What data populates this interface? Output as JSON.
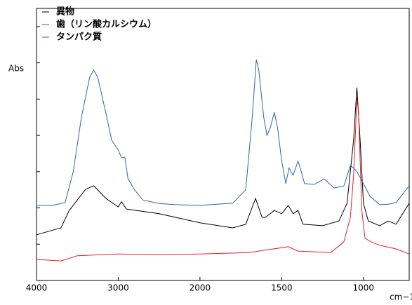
{
  "chart_data": {
    "type": "line",
    "ylabel": "Abs",
    "xlabel": "cm−1",
    "xlim": [
      4000,
      720
    ],
    "xbreak": 2000,
    "xticks": [
      4000,
      3000,
      2000,
      1500,
      1000
    ],
    "ylim": [
      0,
      0.75
    ],
    "yticks": [
      0.1,
      0.2,
      0.3,
      0.4,
      0.5,
      0.6,
      0.7
    ],
    "series": [
      {
        "name": "異物",
        "color": "#000000",
        "x": [
          4000,
          3700,
          3600,
          3500,
          3400,
          3300,
          3150,
          3000,
          2960,
          2900,
          2500,
          2000,
          1800,
          1720,
          1660,
          1620,
          1600,
          1545,
          1500,
          1460,
          1430,
          1400,
          1370,
          1250,
          1150,
          1100,
          1060,
          1040,
          1020,
          1000,
          970,
          900,
          850,
          800,
          720
        ],
        "values": [
          0.126,
          0.145,
          0.193,
          0.222,
          0.251,
          0.261,
          0.226,
          0.203,
          0.217,
          0.197,
          0.184,
          0.159,
          0.145,
          0.155,
          0.226,
          0.174,
          0.174,
          0.193,
          0.184,
          0.207,
          0.184,
          0.193,
          0.155,
          0.151,
          0.164,
          0.213,
          0.387,
          0.532,
          0.387,
          0.213,
          0.164,
          0.151,
          0.164,
          0.155,
          0.213
        ]
      },
      {
        "name": "歯（リン酸カルシウム）",
        "color": "#e0202a",
        "x": [
          4000,
          3700,
          3500,
          3000,
          2500,
          2000,
          1700,
          1460,
          1400,
          1200,
          1120,
          1080,
          1060,
          1040,
          1030,
          1010,
          990,
          950,
          900,
          800,
          720
        ],
        "values": [
          0.058,
          0.054,
          0.068,
          0.073,
          0.071,
          0.073,
          0.077,
          0.093,
          0.081,
          0.077,
          0.106,
          0.174,
          0.29,
          0.503,
          0.464,
          0.193,
          0.116,
          0.106,
          0.097,
          0.087,
          0.073
        ]
      },
      {
        "name": "タンパク質",
        "color": "#3a5fa8",
        "x": [
          4000,
          3800,
          3650,
          3550,
          3450,
          3350,
          3300,
          3250,
          3150,
          3080,
          3000,
          2960,
          2920,
          2880,
          2800,
          2700,
          2500,
          2300,
          2000,
          1800,
          1720,
          1680,
          1655,
          1640,
          1610,
          1590,
          1570,
          1545,
          1525,
          1500,
          1475,
          1455,
          1430,
          1400,
          1380,
          1360,
          1300,
          1240,
          1180,
          1120,
          1080,
          1060,
          1040,
          1000,
          960,
          900,
          850,
          800,
          720
        ],
        "values": [
          0.207,
          0.207,
          0.215,
          0.3,
          0.45,
          0.56,
          0.58,
          0.56,
          0.46,
          0.387,
          0.36,
          0.338,
          0.34,
          0.28,
          0.25,
          0.222,
          0.212,
          0.209,
          0.207,
          0.213,
          0.25,
          0.45,
          0.609,
          0.58,
          0.45,
          0.4,
          0.42,
          0.464,
          0.42,
          0.33,
          0.267,
          0.31,
          0.29,
          0.329,
          0.3,
          0.267,
          0.265,
          0.28,
          0.255,
          0.26,
          0.317,
          0.31,
          0.3,
          0.267,
          0.232,
          0.209,
          0.21,
          0.215,
          0.261
        ]
      }
    ]
  }
}
